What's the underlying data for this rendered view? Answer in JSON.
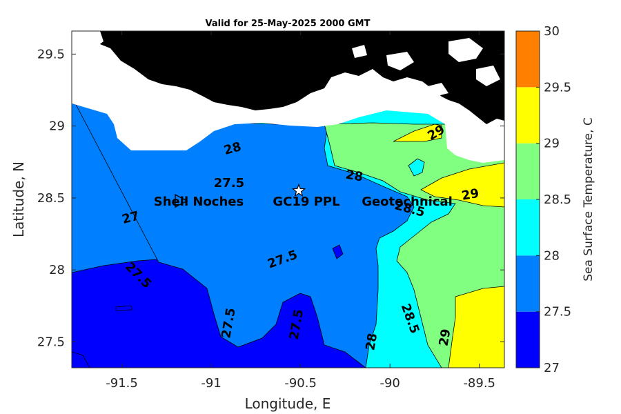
{
  "title": "Valid for 25-May-2025 2000 GMT",
  "chart_data": {
    "type": "filled-contour-map",
    "xlabel": "Longitude, E",
    "ylabel": "Latitude, N",
    "xlim": [
      -91.78,
      -89.36
    ],
    "ylim": [
      27.32,
      29.66
    ],
    "xticks": [
      -91.5,
      -91,
      -90.5,
      -90,
      -89.5
    ],
    "xtick_labels": [
      "-91.5",
      "-91",
      "-90.5",
      "-90",
      "-89.5"
    ],
    "yticks": [
      27.5,
      28,
      28.5,
      29,
      29.5
    ],
    "ytick_labels": [
      "27.5",
      "28",
      "28.5",
      "29",
      "29.5"
    ],
    "colorbar": {
      "label": "Sea Surface Temperature, C",
      "ticks": [
        "27",
        "27.5",
        "28",
        "28.5",
        "29",
        "29.5",
        "30"
      ],
      "bins": [
        {
          "min": 27.0,
          "max": 27.5,
          "color": "#0000ff"
        },
        {
          "min": 27.5,
          "max": 28.0,
          "color": "#0080ff"
        },
        {
          "min": 28.0,
          "max": 28.5,
          "color": "#00ffff"
        },
        {
          "min": 28.5,
          "max": 29.0,
          "color": "#80ff80"
        },
        {
          "min": 29.0,
          "max": 29.5,
          "color": "#ffff00"
        },
        {
          "min": 29.5,
          "max": 30.0,
          "color": "#ff8000"
        }
      ]
    },
    "contour_labels": [
      {
        "text": "28",
        "lon": -90.88,
        "lat": 28.84,
        "angle": -15
      },
      {
        "text": "27.5",
        "lon": -90.9,
        "lat": 28.6,
        "angle": 0
      },
      {
        "text": "28",
        "lon": -90.2,
        "lat": 28.65,
        "angle": 10
      },
      {
        "text": "29",
        "lon": -89.74,
        "lat": 28.95,
        "angle": -30
      },
      {
        "text": "29",
        "lon": -89.55,
        "lat": 28.52,
        "angle": -10
      },
      {
        "text": "28.5",
        "lon": -89.89,
        "lat": 28.42,
        "angle": 15
      },
      {
        "text": "27",
        "lon": -91.45,
        "lat": 28.36,
        "angle": -15
      },
      {
        "text": "27.5",
        "lon": -90.6,
        "lat": 28.07,
        "angle": -20
      },
      {
        "text": "27.5",
        "lon": -91.41,
        "lat": 27.96,
        "angle": 45
      },
      {
        "text": "27.5",
        "lon": -90.9,
        "lat": 27.63,
        "angle": -80
      },
      {
        "text": "27.5",
        "lon": -90.52,
        "lat": 27.62,
        "angle": -80
      },
      {
        "text": "28",
        "lon": -90.1,
        "lat": 27.5,
        "angle": -80
      },
      {
        "text": "28.5",
        "lon": -89.89,
        "lat": 27.66,
        "angle": 70
      },
      {
        "text": "29",
        "lon": -89.69,
        "lat": 27.53,
        "angle": -80
      }
    ],
    "sites": [
      {
        "name": "Shell Noches",
        "lon": -91.17,
        "lat": 28.48,
        "marker": "triangle"
      },
      {
        "name": "GC19 PPL",
        "lon": -90.51,
        "lat": 28.55,
        "marker": "star"
      },
      {
        "name": "Geotechnical",
        "lon": -89.98,
        "lat": 28.48,
        "marker": "none"
      }
    ]
  }
}
